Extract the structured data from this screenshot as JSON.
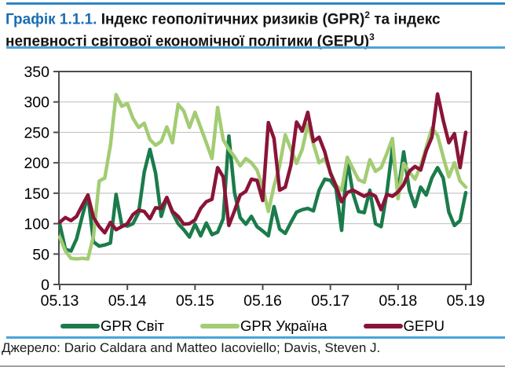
{
  "title": {
    "prefix": "Графік 1.1.1.",
    "line1_text": " Індекс геополітичних ризиків (GPR)",
    "line1_sup": "2",
    "line1_tail": " та індекс",
    "line2_text": "непевності світової економічної політики (GEPU)",
    "line2_sup": "3"
  },
  "source": {
    "label": "Джерело: Dario Caldara and Matteo Iacoviello; Davis, Steven J."
  },
  "colors": {
    "title_accent": "#1a6db3",
    "rule_top": "#2e86c3",
    "rule_light": "#4aa4d9",
    "plot_border": "#4d4d4d",
    "gridline": "#c6c6c6"
  },
  "chart_data": {
    "type": "line",
    "title": "Індекс геополітичних ризиків (GPR) та індекс непевності світової економічної політики (GEPU)",
    "xlabel": "",
    "ylabel": "",
    "ylim": [
      0,
      350
    ],
    "ytick_step": 50,
    "grid": true,
    "legend_position": "bottom",
    "x_frequency": "monthly",
    "x_range": [
      "05.13",
      "05.19"
    ],
    "x_tick_labels": [
      "05.13",
      "05.14",
      "05.15",
      "05.16",
      "05.17",
      "05.18",
      "05.19"
    ],
    "x_tick_positions": [
      0,
      12,
      24,
      36,
      48,
      60,
      72
    ],
    "series": [
      {
        "name": "GPR Світ",
        "color": "#1b7b4b",
        "values": [
          100,
          58,
          55,
          75,
          112,
          147,
          70,
          63,
          65,
          68,
          148,
          98,
          96,
          100,
          118,
          185,
          222,
          183,
          112,
          143,
          118,
          100,
          90,
          78,
          99,
          80,
          101,
          82,
          86,
          108,
          244,
          151,
          110,
          99,
          112,
          95,
          88,
          80,
          128,
          91,
          84,
          102,
          119,
          123,
          125,
          121,
          155,
          173,
          171,
          158,
          89,
          205,
          150,
          120,
          118,
          155,
          100,
          95,
          150,
          225,
          151,
          218,
          155,
          128,
          160,
          147,
          175,
          192,
          175,
          119,
          97,
          105,
          151
        ]
      },
      {
        "name": "GPR Україна",
        "color": "#a3cc73",
        "values": [
          78,
          55,
          43,
          42,
          43,
          42,
          80,
          170,
          175,
          229,
          312,
          293,
          297,
          273,
          258,
          265,
          238,
          229,
          235,
          259,
          233,
          296,
          285,
          258,
          283,
          258,
          233,
          207,
          291,
          238,
          222,
          210,
          195,
          207,
          200,
          188,
          160,
          120,
          162,
          195,
          246,
          222,
          199,
          222,
          263,
          231,
          200,
          207,
          185,
          163,
          155,
          209,
          190,
          172,
          168,
          205,
          186,
          192,
          215,
          240,
          141,
          199,
          185,
          173,
          195,
          225,
          257,
          245,
          210,
          177,
          200,
          170,
          160
        ]
      },
      {
        "name": "GEPU",
        "color": "#8a1437",
        "values": [
          102,
          110,
          105,
          112,
          130,
          147,
          110,
          95,
          85,
          102,
          90,
          95,
          100,
          115,
          122,
          120,
          108,
          126,
          125,
          143,
          120,
          112,
          99,
          100,
          106,
          125,
          136,
          140,
          192,
          177,
          97,
          121,
          147,
          153,
          173,
          171,
          138,
          266,
          240,
          155,
          160,
          196,
          267,
          252,
          283,
          235,
          242,
          218,
          183,
          162,
          136,
          151,
          155,
          150,
          145,
          150,
          145,
          123,
          148,
          145,
          152,
          164,
          186,
          194,
          188,
          220,
          242,
          313,
          270,
          233,
          248,
          192,
          250
        ]
      }
    ]
  }
}
